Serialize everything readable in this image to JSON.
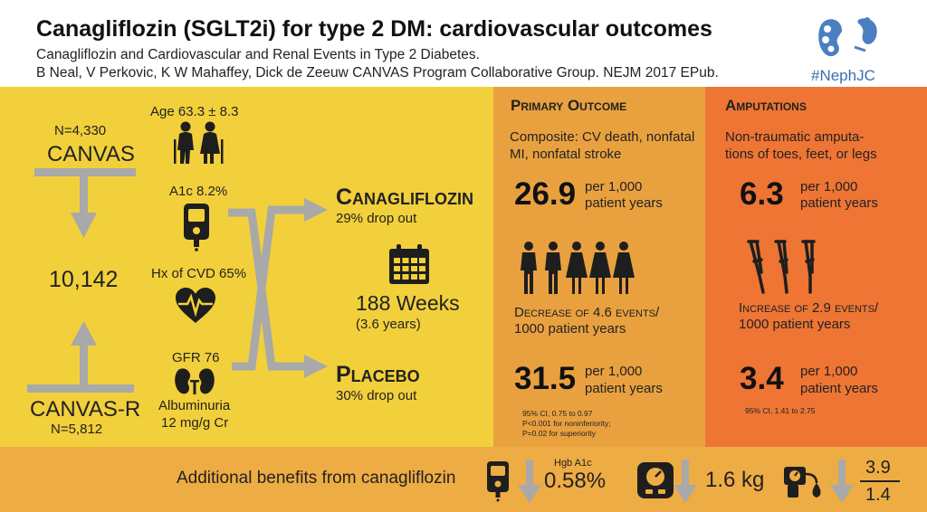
{
  "header": {
    "title": "Canagliflozin (SGLT2i) for type 2 DM: cardiovascular outcomes",
    "subtitle": "Canagliflozin and Cardiovascular and Renal Events in Type 2 Diabetes.",
    "authors": "B Neal, V Perkovic, K W Mahaffey, Dick de Zeeuw CANVAS Program Collaborative Group. NEJM 2017 EPub.",
    "hashtag": "#NephJC"
  },
  "trial": {
    "canvas_n": "N=4,330",
    "canvas_label": "CANVAS",
    "total": "10,142",
    "canvasr_label": "CANVAS-R",
    "canvasr_n": "N=5,812"
  },
  "baseline": {
    "age": "Age 63.3 ± 8.3",
    "a1c": "A1c 8.2%",
    "cvd": "Hx of CVD 65%",
    "gfr": "GFR 76",
    "albuminuria": "Albuminuria",
    "albuminuria_value": "12 mg/g Cr"
  },
  "arms": {
    "cana_label": "Canagliflozin",
    "cana_dropout": "29% drop out",
    "weeks": "188 Weeks",
    "years": "(3.6 years)",
    "placebo_label": "Placebo",
    "placebo_dropout": "30% drop out"
  },
  "primary": {
    "heading": "Primary Outcome",
    "desc_line1": "Composite: CV death, nonfatal",
    "desc_line2": "MI, nonfatal stroke",
    "cana_rate": "26.9",
    "unit_line1": "per 1,000",
    "unit_line2": "patient years",
    "change_line1": "Decrease of 4.6 events/",
    "change_line2": "1000 patient years",
    "placebo_rate": "31.5",
    "stat_line1": "95% CI, 0.75 to 0.97",
    "stat_line2": "P<0.001 for noninferiority;",
    "stat_line3": "P=0.02 for superiority"
  },
  "amputations": {
    "heading": "Amputations",
    "desc_line1": "Non-traumatic amputa-",
    "desc_line2": "tions of toes, feet, or legs",
    "cana_rate": "6.3",
    "unit_line1": "per 1,000",
    "unit_line2": "patient years",
    "change_line1": "Increase of 2.9 events/",
    "change_line2": "1000 patient years",
    "placebo_rate": "3.4",
    "stat_line1": "95% CI, 1.41 to 2.75"
  },
  "benefits": {
    "label": "Additional benefits from canagliflozin",
    "hba1c_label": "Hgb A1c",
    "hba1c_value": "0.58%",
    "weight_value": "1.6 kg",
    "bp_systolic": "3.9",
    "bp_diastolic": "1.4"
  },
  "colors": {
    "yellow": "#f2d03b",
    "orange": "#e9a13f",
    "red_orange": "#ee7534",
    "bottom": "#eeac44",
    "arrow_gray": "#a9a9a9",
    "icon_dark": "#1e1e1e"
  }
}
